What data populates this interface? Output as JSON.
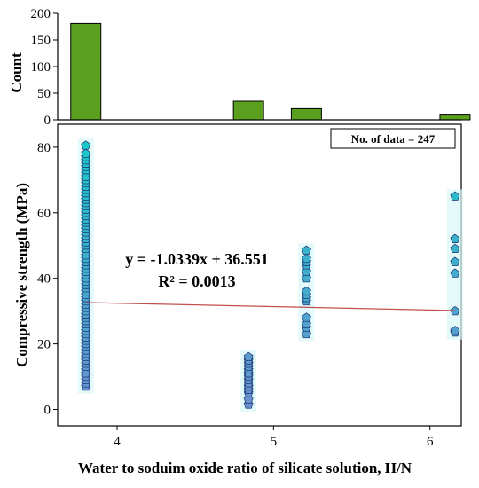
{
  "chart_data": [
    {
      "type": "bar",
      "ylabel": "Count",
      "ylim": [
        0,
        200
      ],
      "yticks": [
        0,
        50,
        100,
        150,
        200
      ],
      "bar_color": "#5aa01e",
      "bars": [
        {
          "x": 3.8,
          "value": 181
        },
        {
          "x": 4.84,
          "value": 35
        },
        {
          "x": 5.21,
          "value": 21
        },
        {
          "x": 6.16,
          "value": 9
        }
      ]
    },
    {
      "type": "scatter",
      "xlabel": "Water to soduim oxide ratio of silicate solution, H/N",
      "ylabel": "Compressive strength (MPa)",
      "xlim": [
        3.62,
        6.2
      ],
      "ylim": [
        -5,
        87
      ],
      "xticks": [
        4,
        5,
        6
      ],
      "yticks": [
        0,
        20,
        40,
        60,
        80
      ],
      "marker_color_high": "#19c8c8",
      "marker_color_low": "#6e8fd2",
      "marker_shape": "pentagon",
      "groups": [
        {
          "x": 3.8,
          "values": [
            7,
            8,
            9,
            10,
            11,
            12,
            13,
            14,
            15,
            16,
            17,
            18,
            19,
            20,
            21,
            22,
            23,
            24,
            25,
            26,
            27,
            28,
            29,
            30,
            31,
            32,
            33,
            34,
            35,
            36,
            37,
            38,
            39,
            40,
            41,
            42,
            43,
            44,
            45,
            46,
            47,
            48,
            49,
            50,
            51,
            52,
            53,
            54,
            55,
            56,
            57,
            58,
            59,
            60,
            61,
            62,
            63,
            64,
            65,
            66,
            67,
            68,
            69,
            70,
            71,
            72,
            73,
            74,
            75,
            76,
            77,
            78,
            80.5
          ]
        },
        {
          "x": 4.84,
          "values": [
            1.5,
            3,
            5,
            6,
            7,
            8,
            9,
            10,
            11,
            12,
            13,
            14,
            15,
            16
          ]
        },
        {
          "x": 5.21,
          "values": [
            23,
            25,
            26,
            28,
            33,
            34,
            35,
            36,
            40,
            42,
            44,
            45,
            46,
            48.5
          ]
        },
        {
          "x": 6.16,
          "values": [
            23.5,
            24,
            30,
            41.5,
            45,
            49,
            52,
            65
          ]
        }
      ],
      "fit": {
        "slope": -1.0339,
        "intercept": 36.551,
        "color": "#c0504d"
      },
      "annotations": {
        "equation": "y = -1.0339x + 36.551",
        "r2": "R² = 0.0013",
        "count_box": "No. of data = 247"
      }
    }
  ]
}
